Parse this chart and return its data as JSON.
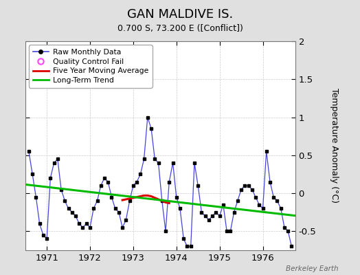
{
  "title": "GAN MALDIVE IS.",
  "subtitle": "0.700 S, 73.200 E ([Conflict])",
  "ylabel": "Temperature Anomaly (°C)",
  "watermark": "Berkeley Earth",
  "xlim": [
    1970.5,
    1976.75
  ],
  "ylim": [
    -0.75,
    2.0
  ],
  "yticks": [
    -0.5,
    0.0,
    0.5,
    1.0,
    1.5,
    2.0
  ],
  "xticks": [
    1971,
    1972,
    1973,
    1974,
    1975,
    1976
  ],
  "fig_bg_color": "#e0e0e0",
  "plot_bg_color": "#ffffff",
  "raw_color": "#4444dd",
  "raw_marker_color": "#000000",
  "ma_color": "#dd0000",
  "trend_color": "#00bb00",
  "raw_x": [
    1970.583,
    1970.667,
    1970.75,
    1970.833,
    1970.917,
    1971.0,
    1971.083,
    1971.167,
    1971.25,
    1971.333,
    1971.417,
    1971.5,
    1971.583,
    1971.667,
    1971.75,
    1971.833,
    1971.917,
    1972.0,
    1972.083,
    1972.167,
    1972.25,
    1972.333,
    1972.417,
    1972.5,
    1972.583,
    1972.667,
    1972.75,
    1972.833,
    1972.917,
    1973.0,
    1973.083,
    1973.167,
    1973.25,
    1973.333,
    1973.417,
    1973.5,
    1973.583,
    1973.667,
    1973.75,
    1973.833,
    1973.917,
    1974.0,
    1974.083,
    1974.167,
    1974.25,
    1974.333,
    1974.417,
    1974.5,
    1974.583,
    1974.667,
    1974.75,
    1974.833,
    1974.917,
    1975.0,
    1975.083,
    1975.167,
    1975.25,
    1975.333,
    1975.417,
    1975.5,
    1975.583,
    1975.667,
    1975.75,
    1975.833,
    1975.917,
    1976.0,
    1976.083,
    1976.167,
    1976.25,
    1976.333,
    1976.417,
    1976.5,
    1976.583,
    1976.667
  ],
  "raw_y": [
    0.55,
    0.25,
    -0.05,
    -0.4,
    -0.55,
    -0.6,
    0.2,
    0.4,
    0.45,
    0.05,
    -0.1,
    -0.2,
    -0.25,
    -0.3,
    -0.4,
    -0.45,
    -0.4,
    -0.45,
    -0.2,
    -0.1,
    0.1,
    0.2,
    0.15,
    -0.05,
    -0.2,
    -0.25,
    -0.45,
    -0.35,
    -0.1,
    0.1,
    0.15,
    0.25,
    0.45,
    1.0,
    0.85,
    0.45,
    0.4,
    -0.1,
    -0.5,
    0.15,
    0.4,
    -0.05,
    -0.2,
    -0.6,
    -0.7,
    -0.7,
    0.4,
    0.1,
    -0.25,
    -0.3,
    -0.35,
    -0.3,
    -0.25,
    -0.3,
    -0.15,
    -0.5,
    -0.5,
    -0.25,
    -0.1,
    0.05,
    0.1,
    0.1,
    0.05,
    -0.05,
    -0.15,
    -0.2,
    0.55,
    0.15,
    -0.05,
    -0.1,
    -0.2,
    -0.45,
    -0.5,
    -0.7
  ],
  "ma_x": [
    1972.75,
    1972.833,
    1972.917,
    1973.0,
    1973.083,
    1973.167,
    1973.25,
    1973.333,
    1973.417,
    1973.5,
    1973.583,
    1973.667,
    1973.75,
    1973.833
  ],
  "ma_y": [
    -0.09,
    -0.08,
    -0.07,
    -0.06,
    -0.05,
    -0.04,
    -0.03,
    -0.03,
    -0.04,
    -0.06,
    -0.08,
    -0.1,
    -0.12,
    -0.13
  ],
  "trend_x": [
    1970.5,
    1976.75
  ],
  "trend_y": [
    0.115,
    -0.295
  ]
}
